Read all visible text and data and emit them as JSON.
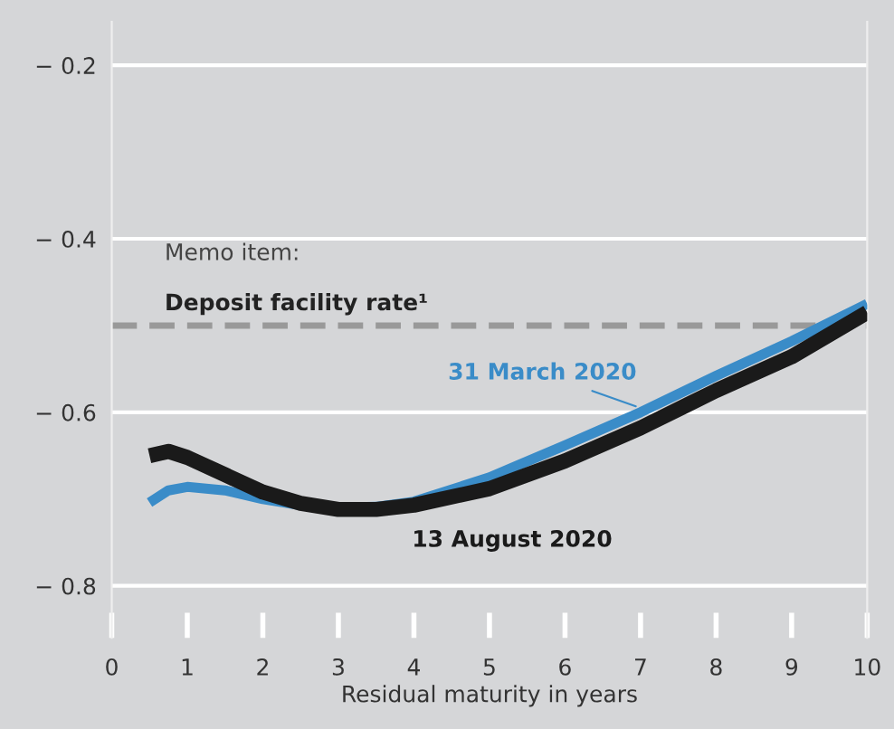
{
  "chart_data": {
    "type": "line",
    "xlabel": "Residual maturity in years",
    "x": [
      0.5,
      0.75,
      1,
      1.5,
      2,
      2.5,
      3,
      3.5,
      4,
      5,
      6,
      7,
      8,
      9,
      10
    ],
    "series": [
      {
        "name": "31 March 2020",
        "color": "#3a8cc8",
        "values": [
          -0.704,
          -0.69,
          -0.686,
          -0.69,
          -0.7,
          -0.707,
          -0.71,
          -0.709,
          -0.703,
          -0.675,
          -0.638,
          -0.6,
          -0.558,
          -0.518,
          -0.475
        ]
      },
      {
        "name": "13 August 2020",
        "color": "#1a1a1a",
        "values": [
          -0.65,
          -0.645,
          -0.652,
          -0.672,
          -0.692,
          -0.705,
          -0.712,
          -0.712,
          -0.707,
          -0.688,
          -0.656,
          -0.618,
          -0.575,
          -0.536,
          -0.485
        ]
      }
    ],
    "xlim": [
      0,
      10
    ],
    "xticks": [
      0,
      1,
      2,
      3,
      4,
      5,
      6,
      7,
      8,
      9,
      10
    ],
    "ylim": [
      -0.86,
      -0.15
    ],
    "yticks": [
      {
        "value": -0.2,
        "label": "− 0.2"
      },
      {
        "value": -0.4,
        "label": "− 0.4"
      },
      {
        "value": -0.6,
        "label": "− 0.6"
      },
      {
        "value": -0.8,
        "label": "− 0.8"
      }
    ],
    "grid": "y",
    "marker": "none",
    "line_style": "solid",
    "ref_lines": [
      {
        "axis": "y",
        "value": -0.5,
        "label": "Deposit facility rate¹",
        "color": "#999999",
        "line_style": "dashed"
      }
    ],
    "annotations": [
      "Memo item:"
    ]
  }
}
